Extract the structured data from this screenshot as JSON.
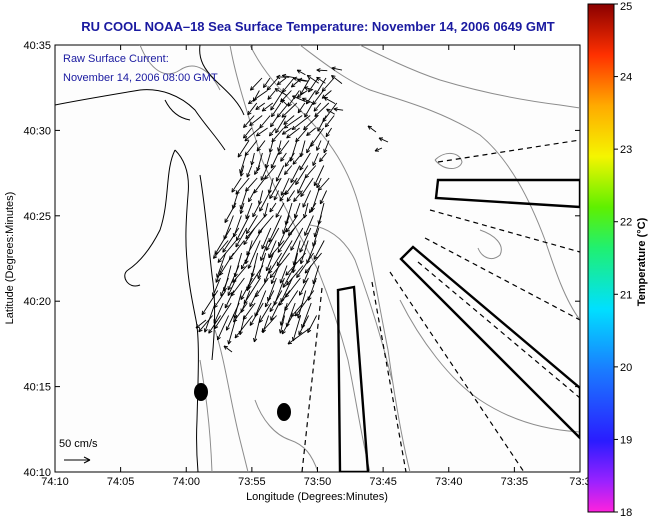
{
  "title": "RU COOL  NOAA–18  Sea Surface Temperature:  November 14, 2006 0649 GMT",
  "subtitle_line1": "Raw Surface Current:",
  "subtitle_line2": "November 14, 2006 08:00 GMT",
  "scale_label": "50 cm/s",
  "xlabel": "Longitude (Degrees:Minutes)",
  "ylabel": "Latitude (Degrees:Minutes)",
  "colorbar_label": "Temperature (°C)",
  "colorbar_ticks": [
    "25",
    "24",
    "23",
    "22",
    "21",
    "20",
    "19",
    "18"
  ],
  "x_ticks": [
    "74:10",
    "74:05",
    "74:00",
    "73:55",
    "73:50",
    "73:45",
    "73:40",
    "73:35",
    "73:3"
  ],
  "y_ticks": [
    "40:35",
    "40:30",
    "40:25",
    "40:20",
    "40:15",
    "40:10"
  ],
  "colors": {
    "title": "#1a1aa0",
    "land_line": "#000000",
    "bathymetry": "#8c8c8c",
    "arrows": "#000000"
  },
  "chart_data": {
    "type": "map",
    "x_range_deg_min": [
      "74:10",
      "73:30"
    ],
    "y_range_deg_min": [
      "40:10",
      "40:35"
    ],
    "colorbar_range_c": [
      18,
      25
    ],
    "vector_field": "raw surface current arrows",
    "markers": [
      "filled-ellipse",
      "filled-ellipse"
    ]
  }
}
